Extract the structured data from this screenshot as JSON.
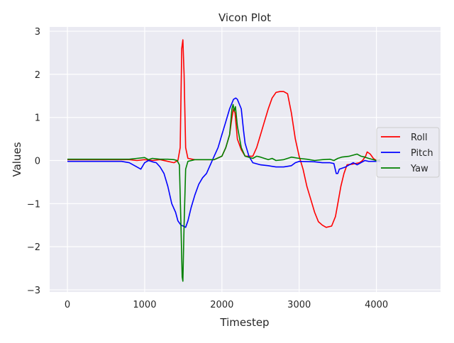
{
  "chart_data": {
    "type": "line",
    "title": "Vicon Plot",
    "xlabel": "Timestep",
    "ylabel": "Values",
    "xlim": [
      -230,
      4830
    ],
    "ylim": [
      -3.05,
      3.1
    ],
    "xticks": [
      0,
      1000,
      2000,
      3000,
      4000
    ],
    "xtick_labels": [
      "0",
      "1000",
      "2000",
      "3000",
      "4000"
    ],
    "yticks": [
      -3,
      -2,
      -1,
      0,
      1,
      2,
      3
    ],
    "ytick_labels": [
      "−3",
      "−2",
      "−1",
      "0",
      "1",
      "2",
      "3"
    ],
    "grid": true,
    "legend_position": "center-right",
    "series": [
      {
        "name": "Roll",
        "color": "#ff0000",
        "points": [
          [
            0,
            0.02
          ],
          [
            400,
            0.02
          ],
          [
            800,
            0.02
          ],
          [
            900,
            0.0
          ],
          [
            1000,
            0.02
          ],
          [
            1100,
            0.0
          ],
          [
            1200,
            0.02
          ],
          [
            1300,
            -0.02
          ],
          [
            1380,
            -0.05
          ],
          [
            1430,
            0.0
          ],
          [
            1460,
            0.3
          ],
          [
            1480,
            2.6
          ],
          [
            1495,
            2.8
          ],
          [
            1510,
            2.0
          ],
          [
            1530,
            0.3
          ],
          [
            1560,
            0.05
          ],
          [
            1650,
            0.02
          ],
          [
            1900,
            0.02
          ],
          [
            2000,
            0.1
          ],
          [
            2050,
            0.3
          ],
          [
            2100,
            0.6
          ],
          [
            2130,
            1.0
          ],
          [
            2150,
            1.2
          ],
          [
            2170,
            1.1
          ],
          [
            2200,
            0.5
          ],
          [
            2250,
            0.25
          ],
          [
            2300,
            0.1
          ],
          [
            2400,
            0.1
          ],
          [
            2450,
            0.3
          ],
          [
            2500,
            0.6
          ],
          [
            2550,
            0.9
          ],
          [
            2600,
            1.2
          ],
          [
            2650,
            1.45
          ],
          [
            2700,
            1.58
          ],
          [
            2750,
            1.6
          ],
          [
            2800,
            1.6
          ],
          [
            2850,
            1.55
          ],
          [
            2900,
            1.1
          ],
          [
            2950,
            0.5
          ],
          [
            3000,
            0.1
          ],
          [
            3050,
            -0.2
          ],
          [
            3100,
            -0.6
          ],
          [
            3150,
            -0.9
          ],
          [
            3200,
            -1.2
          ],
          [
            3250,
            -1.42
          ],
          [
            3300,
            -1.5
          ],
          [
            3350,
            -1.55
          ],
          [
            3420,
            -1.52
          ],
          [
            3470,
            -1.3
          ],
          [
            3500,
            -1.0
          ],
          [
            3540,
            -0.6
          ],
          [
            3580,
            -0.3
          ],
          [
            3620,
            -0.1
          ],
          [
            3700,
            -0.08
          ],
          [
            3780,
            -0.05
          ],
          [
            3820,
            0.0
          ],
          [
            3860,
            0.1
          ],
          [
            3880,
            0.2
          ],
          [
            3920,
            0.15
          ],
          [
            3960,
            0.05
          ],
          [
            4000,
            0.0
          ],
          [
            4050,
            -0.02
          ]
        ]
      },
      {
        "name": "Pitch",
        "color": "#0000ff",
        "points": [
          [
            0,
            -0.02
          ],
          [
            400,
            -0.02
          ],
          [
            700,
            -0.02
          ],
          [
            800,
            -0.05
          ],
          [
            850,
            -0.1
          ],
          [
            900,
            -0.15
          ],
          [
            950,
            -0.2
          ],
          [
            1000,
            -0.05
          ],
          [
            1050,
            0.0
          ],
          [
            1100,
            -0.03
          ],
          [
            1150,
            -0.05
          ],
          [
            1200,
            -0.15
          ],
          [
            1250,
            -0.3
          ],
          [
            1300,
            -0.6
          ],
          [
            1350,
            -1.0
          ],
          [
            1400,
            -1.2
          ],
          [
            1430,
            -1.4
          ],
          [
            1470,
            -1.5
          ],
          [
            1500,
            -1.52
          ],
          [
            1530,
            -1.55
          ],
          [
            1560,
            -1.4
          ],
          [
            1600,
            -1.1
          ],
          [
            1650,
            -0.8
          ],
          [
            1700,
            -0.55
          ],
          [
            1750,
            -0.4
          ],
          [
            1800,
            -0.3
          ],
          [
            1850,
            -0.1
          ],
          [
            1900,
            0.1
          ],
          [
            1950,
            0.3
          ],
          [
            2000,
            0.6
          ],
          [
            2050,
            0.9
          ],
          [
            2100,
            1.2
          ],
          [
            2150,
            1.42
          ],
          [
            2180,
            1.45
          ],
          [
            2200,
            1.42
          ],
          [
            2250,
            1.2
          ],
          [
            2280,
            0.7
          ],
          [
            2300,
            0.4
          ],
          [
            2350,
            0.1
          ],
          [
            2400,
            -0.05
          ],
          [
            2500,
            -0.1
          ],
          [
            2600,
            -0.12
          ],
          [
            2700,
            -0.15
          ],
          [
            2800,
            -0.15
          ],
          [
            2900,
            -0.12
          ],
          [
            2950,
            -0.05
          ],
          [
            3000,
            -0.02
          ],
          [
            3200,
            -0.03
          ],
          [
            3300,
            -0.05
          ],
          [
            3400,
            -0.05
          ],
          [
            3450,
            -0.07
          ],
          [
            3480,
            -0.3
          ],
          [
            3500,
            -0.3
          ],
          [
            3520,
            -0.2
          ],
          [
            3600,
            -0.15
          ],
          [
            3650,
            -0.1
          ],
          [
            3700,
            -0.05
          ],
          [
            3750,
            -0.1
          ],
          [
            3800,
            -0.05
          ],
          [
            3850,
            0.0
          ],
          [
            3900,
            -0.02
          ],
          [
            4000,
            -0.02
          ],
          [
            4050,
            -0.02
          ]
        ]
      },
      {
        "name": "Yaw",
        "color": "#008000",
        "points": [
          [
            0,
            0.03
          ],
          [
            400,
            0.03
          ],
          [
            800,
            0.03
          ],
          [
            900,
            0.05
          ],
          [
            1000,
            0.07
          ],
          [
            1050,
            0.02
          ],
          [
            1100,
            0.05
          ],
          [
            1200,
            0.03
          ],
          [
            1300,
            0.03
          ],
          [
            1380,
            0.02
          ],
          [
            1420,
            0.0
          ],
          [
            1450,
            -0.1
          ],
          [
            1470,
            -1.5
          ],
          [
            1485,
            -2.7
          ],
          [
            1495,
            -2.8
          ],
          [
            1510,
            -1.5
          ],
          [
            1530,
            -0.2
          ],
          [
            1560,
            -0.02
          ],
          [
            1650,
            0.02
          ],
          [
            1900,
            0.02
          ],
          [
            2000,
            0.1
          ],
          [
            2050,
            0.3
          ],
          [
            2100,
            0.6
          ],
          [
            2130,
            1.2
          ],
          [
            2145,
            1.3
          ],
          [
            2160,
            1.15
          ],
          [
            2175,
            1.25
          ],
          [
            2200,
            0.8
          ],
          [
            2250,
            0.3
          ],
          [
            2300,
            0.1
          ],
          [
            2400,
            0.05
          ],
          [
            2450,
            0.1
          ],
          [
            2500,
            0.08
          ],
          [
            2600,
            0.02
          ],
          [
            2650,
            0.05
          ],
          [
            2700,
            0.0
          ],
          [
            2800,
            0.02
          ],
          [
            2900,
            0.08
          ],
          [
            3000,
            0.05
          ],
          [
            3100,
            0.03
          ],
          [
            3200,
            0.0
          ],
          [
            3300,
            0.02
          ],
          [
            3400,
            0.03
          ],
          [
            3450,
            0.0
          ],
          [
            3500,
            0.05
          ],
          [
            3550,
            0.08
          ],
          [
            3650,
            0.1
          ],
          [
            3750,
            0.15
          ],
          [
            3800,
            0.1
          ],
          [
            3850,
            0.08
          ],
          [
            3900,
            0.05
          ],
          [
            4000,
            0.0
          ],
          [
            4050,
            0.02
          ]
        ]
      }
    ]
  }
}
